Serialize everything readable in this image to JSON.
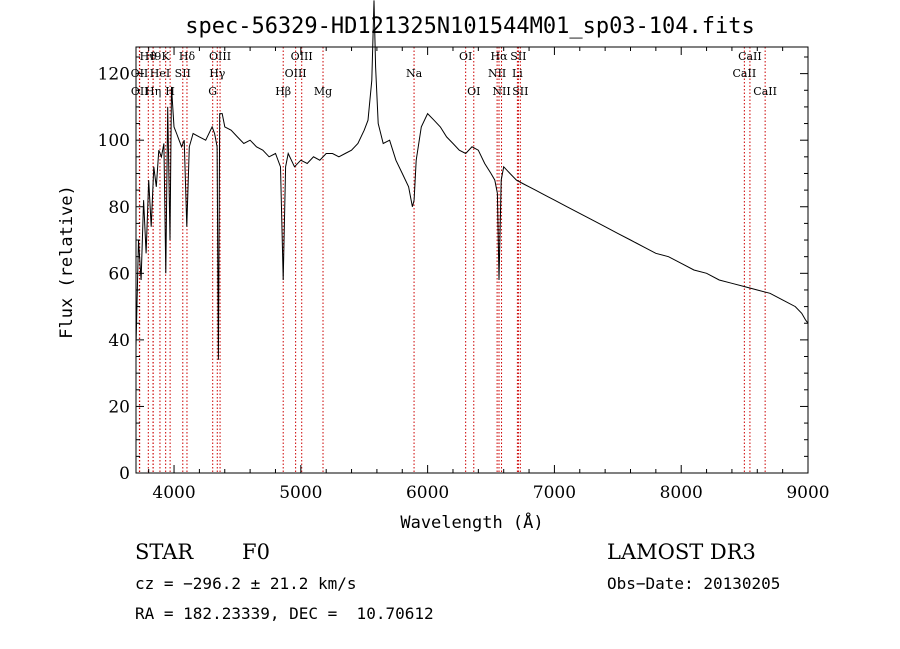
{
  "chart_data": {
    "type": "line",
    "title": "spec-56329-HD121325N101544M01_sp03-104.fits",
    "xlabel": "Wavelength (Å)",
    "ylabel": "Flux (relative)",
    "xlim": [
      3700,
      9000
    ],
    "ylim": [
      0,
      128
    ],
    "xticks": [
      4000,
      5000,
      6000,
      7000,
      8000,
      9000
    ],
    "yticks": [
      0,
      20,
      40,
      60,
      80,
      100,
      120
    ],
    "series": [
      {
        "name": "spectrum",
        "x": [
          3700,
          3720,
          3740,
          3760,
          3780,
          3800,
          3820,
          3840,
          3860,
          3880,
          3900,
          3920,
          3935,
          3950,
          3968,
          3980,
          4000,
          4020,
          4040,
          4060,
          4080,
          4101,
          4120,
          4150,
          4200,
          4250,
          4300,
          4320,
          4340,
          4350,
          4360,
          4380,
          4400,
          4450,
          4500,
          4550,
          4600,
          4650,
          4700,
          4750,
          4800,
          4840,
          4861,
          4880,
          4900,
          4950,
          5000,
          5050,
          5100,
          5150,
          5200,
          5250,
          5300,
          5350,
          5400,
          5450,
          5500,
          5530,
          5560,
          5577,
          5590,
          5610,
          5650,
          5700,
          5750,
          5800,
          5850,
          5880,
          5893,
          5910,
          5950,
          6000,
          6050,
          6100,
          6150,
          6200,
          6250,
          6300,
          6350,
          6400,
          6450,
          6500,
          6530,
          6550,
          6563,
          6580,
          6600,
          6650,
          6700,
          6750,
          6800,
          6850,
          6900,
          6950,
          7000,
          7100,
          7200,
          7300,
          7400,
          7500,
          7600,
          7700,
          7800,
          7900,
          8000,
          8100,
          8200,
          8300,
          8400,
          8500,
          8600,
          8700,
          8800,
          8900,
          8950,
          8980,
          9000
        ],
        "values": [
          38,
          70,
          58,
          82,
          66,
          88,
          74,
          92,
          86,
          97,
          95,
          99,
          60,
          110,
          70,
          116,
          104,
          102,
          100,
          98,
          100,
          74,
          98,
          102,
          101,
          100,
          104,
          102,
          98,
          34,
          108,
          108,
          104,
          103,
          101,
          99,
          100,
          98,
          97,
          95,
          96,
          92,
          58,
          92,
          96,
          92,
          94,
          93,
          95,
          94,
          96,
          96,
          95,
          96,
          97,
          99,
          103,
          106,
          118,
          142,
          122,
          105,
          99,
          100,
          94,
          90,
          86,
          80,
          82,
          94,
          104,
          108,
          106,
          104,
          101,
          99,
          97,
          96,
          98,
          97,
          93,
          90,
          88,
          84,
          58,
          88,
          92,
          90,
          88,
          87,
          86,
          85,
          84,
          83,
          82,
          80,
          78,
          76,
          74,
          72,
          70,
          68,
          66,
          65,
          63,
          61,
          60,
          58,
          57,
          56,
          55,
          54,
          52,
          50,
          48,
          46,
          45
        ]
      }
    ],
    "line_markers": [
      {
        "label": "OII",
        "wavelength": 3727,
        "row": 2
      },
      {
        "label": "OII",
        "wavelength": 3729,
        "row": 3
      },
      {
        "label": "H9",
        "wavelength": 3835,
        "row": 1
      },
      {
        "label": "Hϑ",
        "wavelength": 3797,
        "row": 1
      },
      {
        "label": "HeI",
        "wavelength": 3889,
        "row": 2
      },
      {
        "label": "Hη",
        "wavelength": 3835,
        "row": 3
      },
      {
        "label": "K",
        "wavelength": 3934,
        "row": 1
      },
      {
        "label": "SII",
        "wavelength": 4069,
        "row": 2
      },
      {
        "label": "H",
        "wavelength": 3969,
        "row": 3
      },
      {
        "label": "Hδ",
        "wavelength": 4102,
        "row": 1
      },
      {
        "label": "OIII",
        "wavelength": 4363,
        "row": 1
      },
      {
        "label": "Hγ",
        "wavelength": 4341,
        "row": 2
      },
      {
        "label": "G",
        "wavelength": 4305,
        "row": 3
      },
      {
        "label": "OIII",
        "wavelength": 5007,
        "row": 1
      },
      {
        "label": "OIII",
        "wavelength": 4959,
        "row": 2
      },
      {
        "label": "Hβ",
        "wavelength": 4861,
        "row": 3
      },
      {
        "label": "Mg",
        "wavelength": 5175,
        "row": 3
      },
      {
        "label": "Na",
        "wavelength": 5893,
        "row": 2
      },
      {
        "label": "OI",
        "wavelength": 6300,
        "row": 1
      },
      {
        "label": "OI",
        "wavelength": 6364,
        "row": 3
      },
      {
        "label": "Hα",
        "wavelength": 6563,
        "row": 1
      },
      {
        "label": "SII",
        "wavelength": 6716,
        "row": 1
      },
      {
        "label": "NII",
        "wavelength": 6548,
        "row": 2
      },
      {
        "label": "Li",
        "wavelength": 6708,
        "row": 2
      },
      {
        "label": "NII",
        "wavelength": 6583,
        "row": 3
      },
      {
        "label": "SII",
        "wavelength": 6731,
        "row": 3
      },
      {
        "label": "CaII",
        "wavelength": 8542,
        "row": 1
      },
      {
        "label": "CaII",
        "wavelength": 8498,
        "row": 2
      },
      {
        "label": "CaII",
        "wavelength": 8662,
        "row": 3
      }
    ],
    "marker_color": "#cc0000",
    "line_color": "#000000"
  },
  "info": {
    "object_class": "STAR",
    "subclass": "F0",
    "survey": "LAMOST DR3",
    "redshift": "cz = −296.2 ± 21.2 km/s",
    "obs_date": "Obs−Date: 20130205",
    "coords": "RA = 182.23339, DEC =  10.70612"
  }
}
